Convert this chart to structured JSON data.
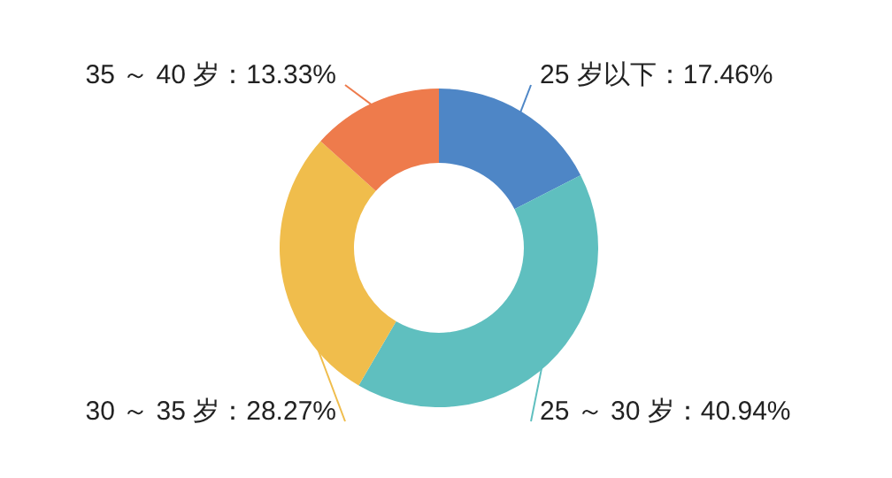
{
  "chart_data": {
    "type": "donut",
    "categories": [
      "25 岁以下",
      "25 ～ 30 岁",
      "30 ～ 35 岁",
      "35 ～ 40 岁"
    ],
    "values": [
      17.46,
      40.94,
      28.27,
      13.33
    ],
    "value_labels": [
      "17.46%",
      "40.94%",
      "28.27%",
      "13.33%"
    ],
    "colors": [
      "#4e86c6",
      "#5fbfbf",
      "#f0bd4c",
      "#ee7b4c"
    ]
  }
}
